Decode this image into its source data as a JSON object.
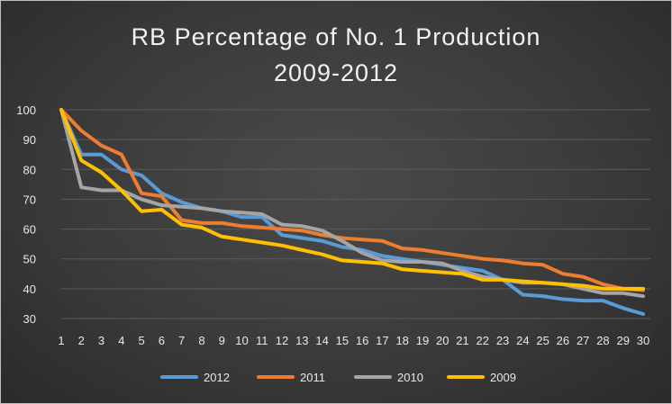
{
  "chart_data": {
    "type": "line",
    "title": "RB Percentage of No. 1 Production",
    "subtitle": "2009-2012",
    "xlabel": "",
    "ylabel": "",
    "x": [
      1,
      2,
      3,
      4,
      5,
      6,
      7,
      8,
      9,
      10,
      11,
      12,
      13,
      14,
      15,
      16,
      17,
      18,
      19,
      20,
      21,
      22,
      23,
      24,
      25,
      26,
      27,
      28,
      29,
      30
    ],
    "ylim": [
      30,
      100
    ],
    "yticks": [
      30,
      40,
      50,
      60,
      70,
      80,
      90,
      100
    ],
    "grid": true,
    "legend": "bottom",
    "series": [
      {
        "name": "2012",
        "color": "#5b9bd5",
        "values": [
          100,
          85,
          85,
          80,
          78,
          72,
          69,
          67,
          66,
          64,
          64,
          58,
          57,
          56,
          54,
          53,
          51,
          50,
          49,
          48,
          47,
          46,
          43,
          38,
          37.5,
          36.5,
          36,
          36,
          33.5,
          31.5
        ]
      },
      {
        "name": "2011",
        "color": "#ed7d31",
        "values": [
          100,
          93,
          88,
          85,
          72,
          71,
          63,
          62,
          62,
          61,
          60.5,
          60,
          59.5,
          58,
          57,
          56.5,
          56,
          53.5,
          53,
          52,
          51,
          50,
          49.5,
          48.5,
          48,
          45,
          44,
          41.5,
          40,
          39.5
        ]
      },
      {
        "name": "2010",
        "color": "#a5a5a5",
        "values": [
          100,
          74,
          73,
          73,
          70,
          68,
          67.5,
          67,
          66,
          65.5,
          65,
          61.5,
          61,
          59.5,
          56,
          52,
          49.5,
          49,
          49,
          48.5,
          46,
          44,
          43,
          42,
          42,
          41.5,
          40,
          38.5,
          38.5,
          37.5
        ]
      },
      {
        "name": "2009",
        "color": "#ffc000",
        "values": [
          100,
          83,
          79,
          73,
          66,
          66.5,
          61.5,
          60.5,
          57.5,
          56.5,
          55.5,
          54.5,
          53,
          51.5,
          49.5,
          49,
          48.5,
          46.5,
          46,
          45.5,
          45,
          43,
          43,
          42.5,
          42,
          41.5,
          41,
          40,
          40,
          40
        ]
      }
    ]
  }
}
